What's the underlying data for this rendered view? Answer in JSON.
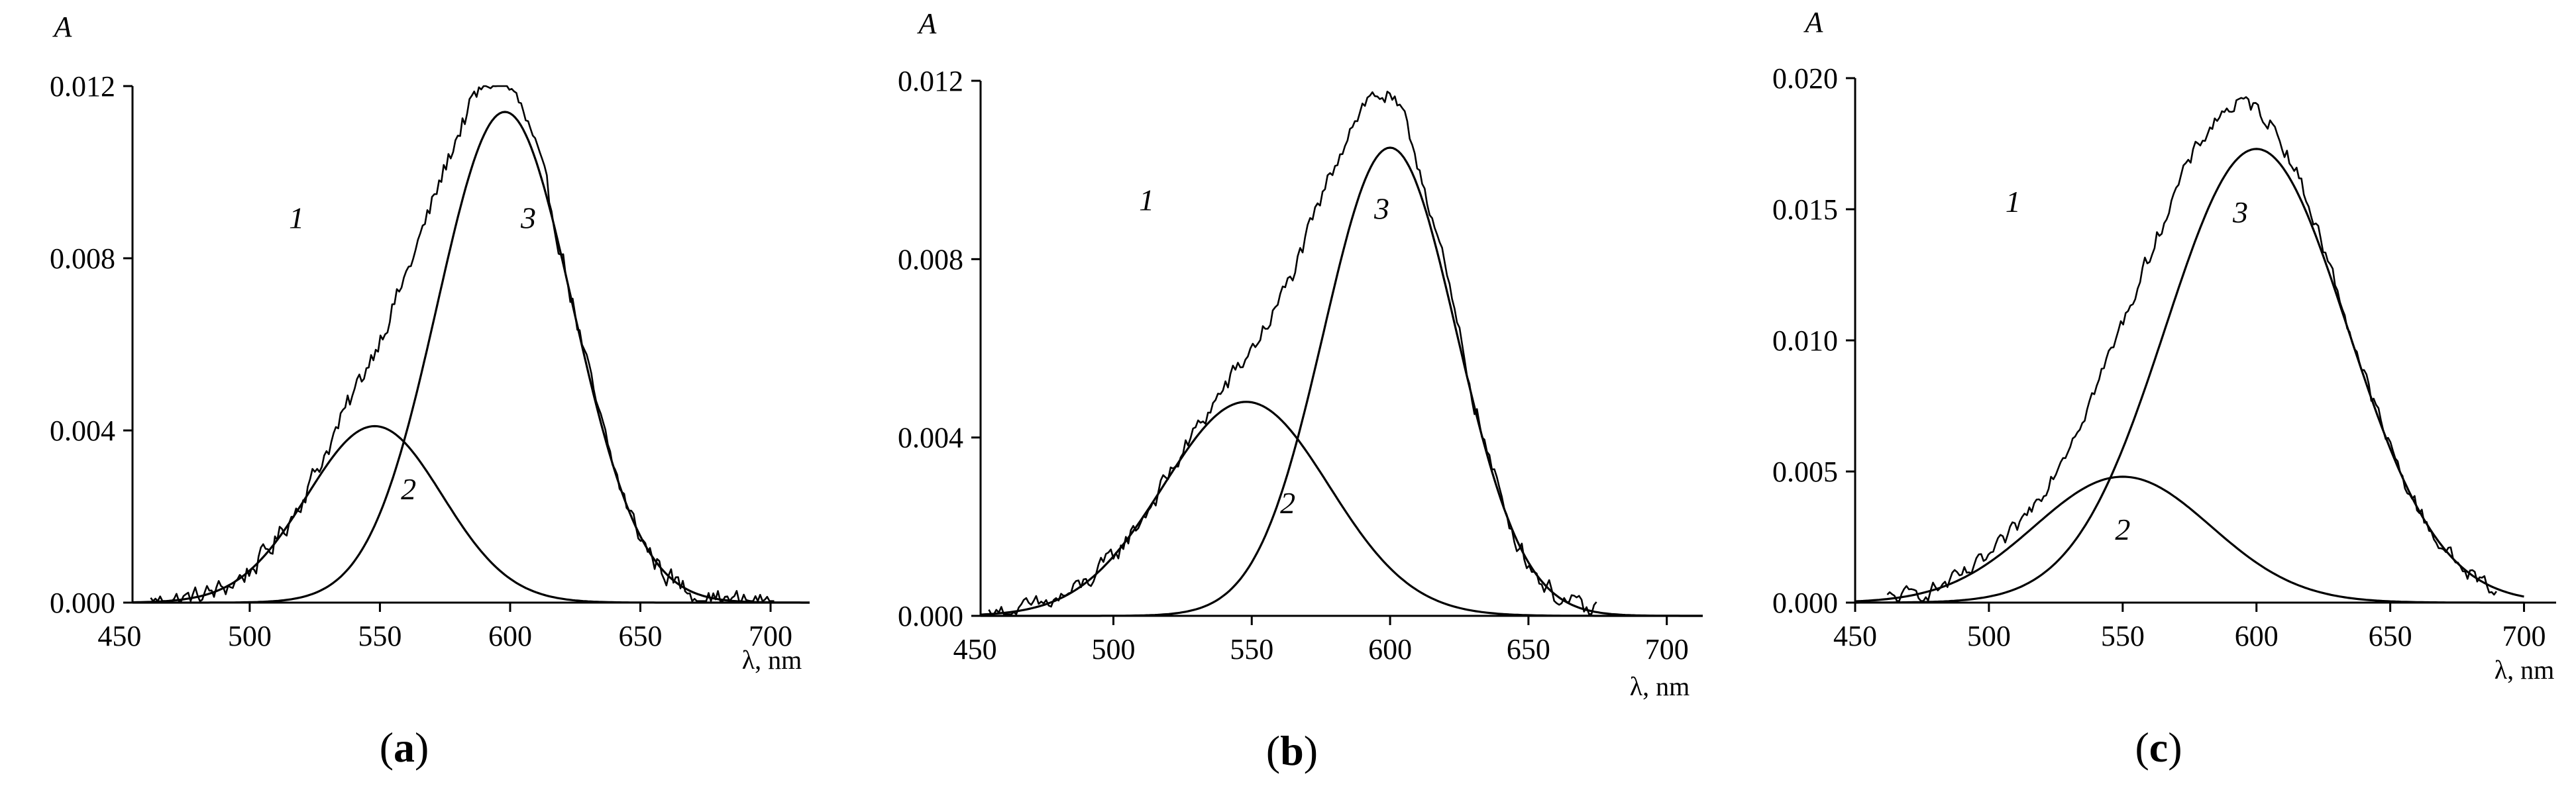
{
  "chart_data": [
    {
      "type": "line",
      "panel_label": "a",
      "panel_label_text": [
        "(",
        "a",
        ")"
      ],
      "title": "",
      "ylabel": "A",
      "xlabel": "λ, nm",
      "xlim": [
        455,
        715
      ],
      "ylim": [
        0,
        0.012
      ],
      "x_ticks": [
        450,
        500,
        550,
        600,
        650,
        700
      ],
      "x_tick_labels": [
        "450",
        "500",
        "550",
        "600",
        "650",
        "700"
      ],
      "y_ticks": [
        0,
        0.004,
        0.008,
        0.012
      ],
      "y_tick_labels": [
        "0.000",
        "0.004",
        "0.008",
        "0.012"
      ],
      "series": [
        {
          "name": "1",
          "label": "1",
          "style": "noisy",
          "label_at": [
            518,
            0.0087
          ],
          "components": [
            {
              "amp": 0.0041,
              "center": 548,
              "sigma": 26
            },
            {
              "amp": 0.0114,
              "center": 598,
              "sigma": 26
            }
          ],
          "noise": 0.00022,
          "x_range": [
            462,
            702
          ]
        },
        {
          "name": "2",
          "label": "2",
          "style": "smooth",
          "label_at": [
            561,
            0.0024
          ],
          "components": [
            {
              "amp": 0.0041,
              "center": 548,
              "sigma": 26
            }
          ],
          "x_range": [
            455,
            715
          ]
        },
        {
          "name": "3",
          "label": "3",
          "style": "smooth",
          "label_at": [
            607,
            0.0087
          ],
          "components": [
            {
              "amp": 0.0114,
              "center": 598,
              "sigma": 26
            }
          ],
          "x_range": [
            455,
            715
          ]
        }
      ]
    },
    {
      "type": "line",
      "panel_label": "b",
      "panel_label_text": [
        "(",
        "b",
        ")"
      ],
      "title": "",
      "ylabel": "A",
      "xlabel": "λ, nm",
      "xlim": [
        452,
        713
      ],
      "ylim": [
        0,
        0.012
      ],
      "x_ticks": [
        450,
        500,
        550,
        600,
        650,
        700
      ],
      "x_tick_labels": [
        "450",
        "500",
        "550",
        "600",
        "650",
        "700"
      ],
      "y_ticks": [
        0,
        0.004,
        0.008,
        0.012
      ],
      "y_tick_labels": [
        "0.000",
        "0.004",
        "0.008",
        "0.012"
      ],
      "series": [
        {
          "name": "1",
          "label": "1",
          "style": "noisy",
          "label_at": [
            512,
            0.0091
          ],
          "components": [
            {
              "amp": 0.0048,
              "center": 548,
              "sigma": 30
            },
            {
              "amp": 0.0105,
              "center": 600,
              "sigma": 24
            }
          ],
          "noise": 0.0002,
          "x_range": [
            455,
            675
          ]
        },
        {
          "name": "2",
          "label": "2",
          "style": "smooth",
          "label_at": [
            563,
            0.0023
          ],
          "components": [
            {
              "amp": 0.0048,
              "center": 548,
              "sigma": 30
            }
          ],
          "x_range": [
            452,
            713
          ]
        },
        {
          "name": "3",
          "label": "3",
          "style": "smooth",
          "label_at": [
            597,
            0.0089
          ],
          "components": [
            {
              "amp": 0.0105,
              "center": 600,
              "sigma": 24
            }
          ],
          "x_range": [
            452,
            713
          ]
        }
      ]
    },
    {
      "type": "line",
      "panel_label": "c",
      "panel_label_text": [
        "(",
        "c",
        ")"
      ],
      "title": "",
      "ylabel": "A",
      "xlabel": "λ, nm",
      "xlim": [
        450,
        712
      ],
      "ylim": [
        0,
        0.02
      ],
      "x_ticks": [
        450,
        500,
        550,
        600,
        650,
        700
      ],
      "x_tick_labels": [
        "450",
        "500",
        "550",
        "600",
        "650",
        "700"
      ],
      "y_ticks": [
        0,
        0.005,
        0.01,
        0.015,
        0.02
      ],
      "y_tick_labels": [
        "0.000",
        "0.005",
        "0.010",
        "0.015",
        "0.020"
      ],
      "series": [
        {
          "name": "1",
          "label": "1",
          "style": "noisy",
          "label_at": [
            509,
            0.0149
          ],
          "components": [
            {
              "amp": 0.0048,
              "center": 550,
              "sigma": 33
            },
            {
              "amp": 0.0173,
              "center": 600,
              "sigma": 34
            }
          ],
          "noise": 0.00028,
          "x_range": [
            462,
            690
          ]
        },
        {
          "name": "2",
          "label": "2",
          "style": "smooth",
          "label_at": [
            550,
            0.0024
          ],
          "components": [
            {
              "amp": 0.0048,
              "center": 550,
              "sigma": 33
            }
          ],
          "x_range": [
            450,
            700
          ]
        },
        {
          "name": "3",
          "label": "3",
          "style": "smooth",
          "label_at": [
            594,
            0.0145
          ],
          "components": [
            {
              "amp": 0.0173,
              "center": 600,
              "sigma": 34
            }
          ],
          "x_range": [
            450,
            700
          ]
        }
      ]
    }
  ]
}
